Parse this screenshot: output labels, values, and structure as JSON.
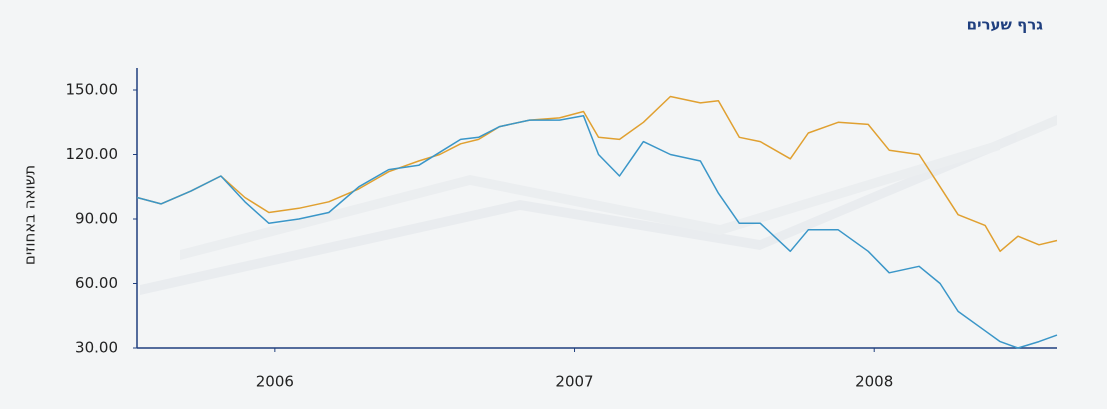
{
  "chart_data": {
    "type": "line",
    "title": "גרף שערים",
    "y_label": "תשואה באחוזים",
    "x": [
      2005.54,
      2005.62,
      2005.72,
      2005.82,
      2005.9,
      2005.98,
      2006.08,
      2006.18,
      2006.28,
      2006.38,
      2006.48,
      2006.55,
      2006.62,
      2006.68,
      2006.75,
      2006.85,
      2006.95,
      2007.03,
      2007.08,
      2007.15,
      2007.23,
      2007.32,
      2007.42,
      2007.48,
      2007.55,
      2007.62,
      2007.72,
      2007.78,
      2007.88,
      2007.98,
      2008.05,
      2008.15,
      2008.22,
      2008.28,
      2008.37,
      2008.42,
      2008.48,
      2008.55,
      2008.61
    ],
    "series": [
      {
        "color": "#e0a030",
        "values": [
          100,
          97,
          103,
          110,
          100,
          93,
          95,
          98,
          104,
          112,
          117,
          120,
          125,
          127,
          133,
          136,
          137,
          140,
          128,
          127,
          135,
          147,
          144,
          145,
          128,
          126,
          118,
          130,
          135,
          134,
          122,
          120,
          105,
          92,
          87,
          75,
          82,
          78,
          80
        ]
      },
      {
        "color": "#3a96c8",
        "values": [
          100,
          97,
          103,
          110,
          98,
          88,
          90,
          93,
          105,
          113,
          115,
          121,
          127,
          128,
          133,
          136,
          136,
          138,
          120,
          110,
          126,
          120,
          117,
          102,
          88,
          88,
          75,
          85,
          85,
          75,
          65,
          68,
          60,
          47,
          38,
          33,
          30,
          33,
          36
        ]
      }
    ],
    "xlim": [
      2005.54,
      2008.61
    ],
    "xticks": [
      2006,
      2007,
      2008
    ],
    "ylim": [
      30,
      150
    ],
    "yticks": [
      {
        "value": 30,
        "label": "30.00"
      },
      {
        "value": 60,
        "label": "60.00"
      },
      {
        "value": 90,
        "label": "90.00"
      },
      {
        "value": 120,
        "label": "120.00"
      },
      {
        "value": 150,
        "label": "150.00"
      }
    ]
  }
}
